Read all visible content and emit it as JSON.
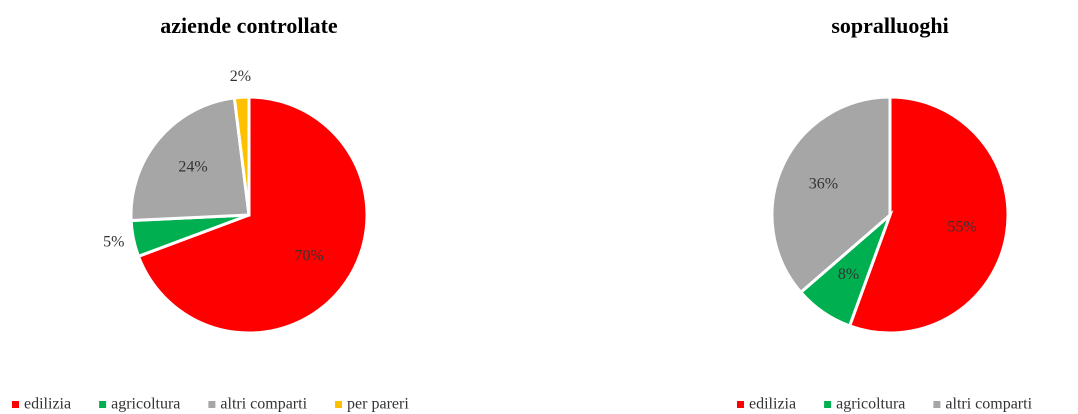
{
  "chart_data": [
    {
      "type": "pie",
      "title": "aziende controllate",
      "categories": [
        "edilizia",
        "agricoltura",
        "altri comparti",
        "per pareri"
      ],
      "values": [
        70,
        5,
        24,
        2
      ],
      "value_labels": [
        "70%",
        "5%",
        "24%",
        "2%"
      ],
      "colors": [
        "#ff0000",
        "#00b050",
        "#a6a6a6",
        "#ffc000"
      ],
      "legend": "bottom"
    },
    {
      "type": "pie",
      "title": "sopralluoghi",
      "categories": [
        "edilizia",
        "agricoltura",
        "altri comparti"
      ],
      "values": [
        55,
        8,
        36
      ],
      "value_labels": [
        "55%",
        "8%",
        "36%"
      ],
      "colors": [
        "#ff0000",
        "#00b050",
        "#a6a6a6"
      ],
      "legend": "bottom"
    }
  ]
}
